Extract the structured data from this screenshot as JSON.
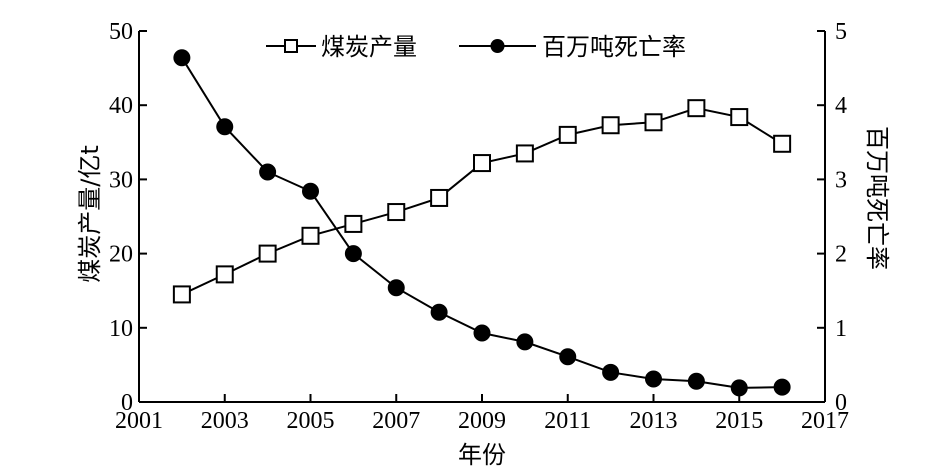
{
  "chart_data": {
    "type": "line",
    "xlabel": "年份",
    "x_ticks": [
      2001,
      2003,
      2005,
      2007,
      2009,
      2011,
      2013,
      2015,
      2017
    ],
    "xlim": [
      2001,
      2017
    ],
    "y_left": {
      "label": "煤炭产量/亿t",
      "ylim": [
        0,
        50
      ],
      "ticks": [
        0,
        10,
        20,
        30,
        40,
        50
      ]
    },
    "y_right": {
      "label": "百万吨死亡率",
      "ylim": [
        0,
        5
      ],
      "ticks": [
        0,
        1,
        2,
        3,
        4,
        5
      ]
    },
    "legend_position": "top-center",
    "grid": false,
    "series": [
      {
        "name": "煤炭产量",
        "axis": "left",
        "marker": "open-square",
        "color": "#000000",
        "x": [
          2002,
          2003,
          2004,
          2005,
          2006,
          2007,
          2008,
          2009,
          2010,
          2011,
          2012,
          2013,
          2014,
          2015,
          2016
        ],
        "values": [
          14.5,
          17.2,
          20.0,
          22.4,
          24.0,
          25.6,
          27.5,
          32.2,
          33.5,
          36.0,
          37.3,
          37.7,
          39.6,
          38.4,
          34.8
        ]
      },
      {
        "name": "百万吨死亡率",
        "axis": "right",
        "marker": "filled-circle",
        "color": "#000000",
        "x": [
          2002,
          2003,
          2004,
          2005,
          2006,
          2007,
          2008,
          2009,
          2010,
          2011,
          2012,
          2013,
          2014,
          2015,
          2016
        ],
        "values": [
          4.64,
          3.71,
          3.1,
          2.84,
          2.0,
          1.54,
          1.21,
          0.93,
          0.81,
          0.61,
          0.4,
          0.31,
          0.28,
          0.19,
          0.2
        ]
      }
    ]
  }
}
